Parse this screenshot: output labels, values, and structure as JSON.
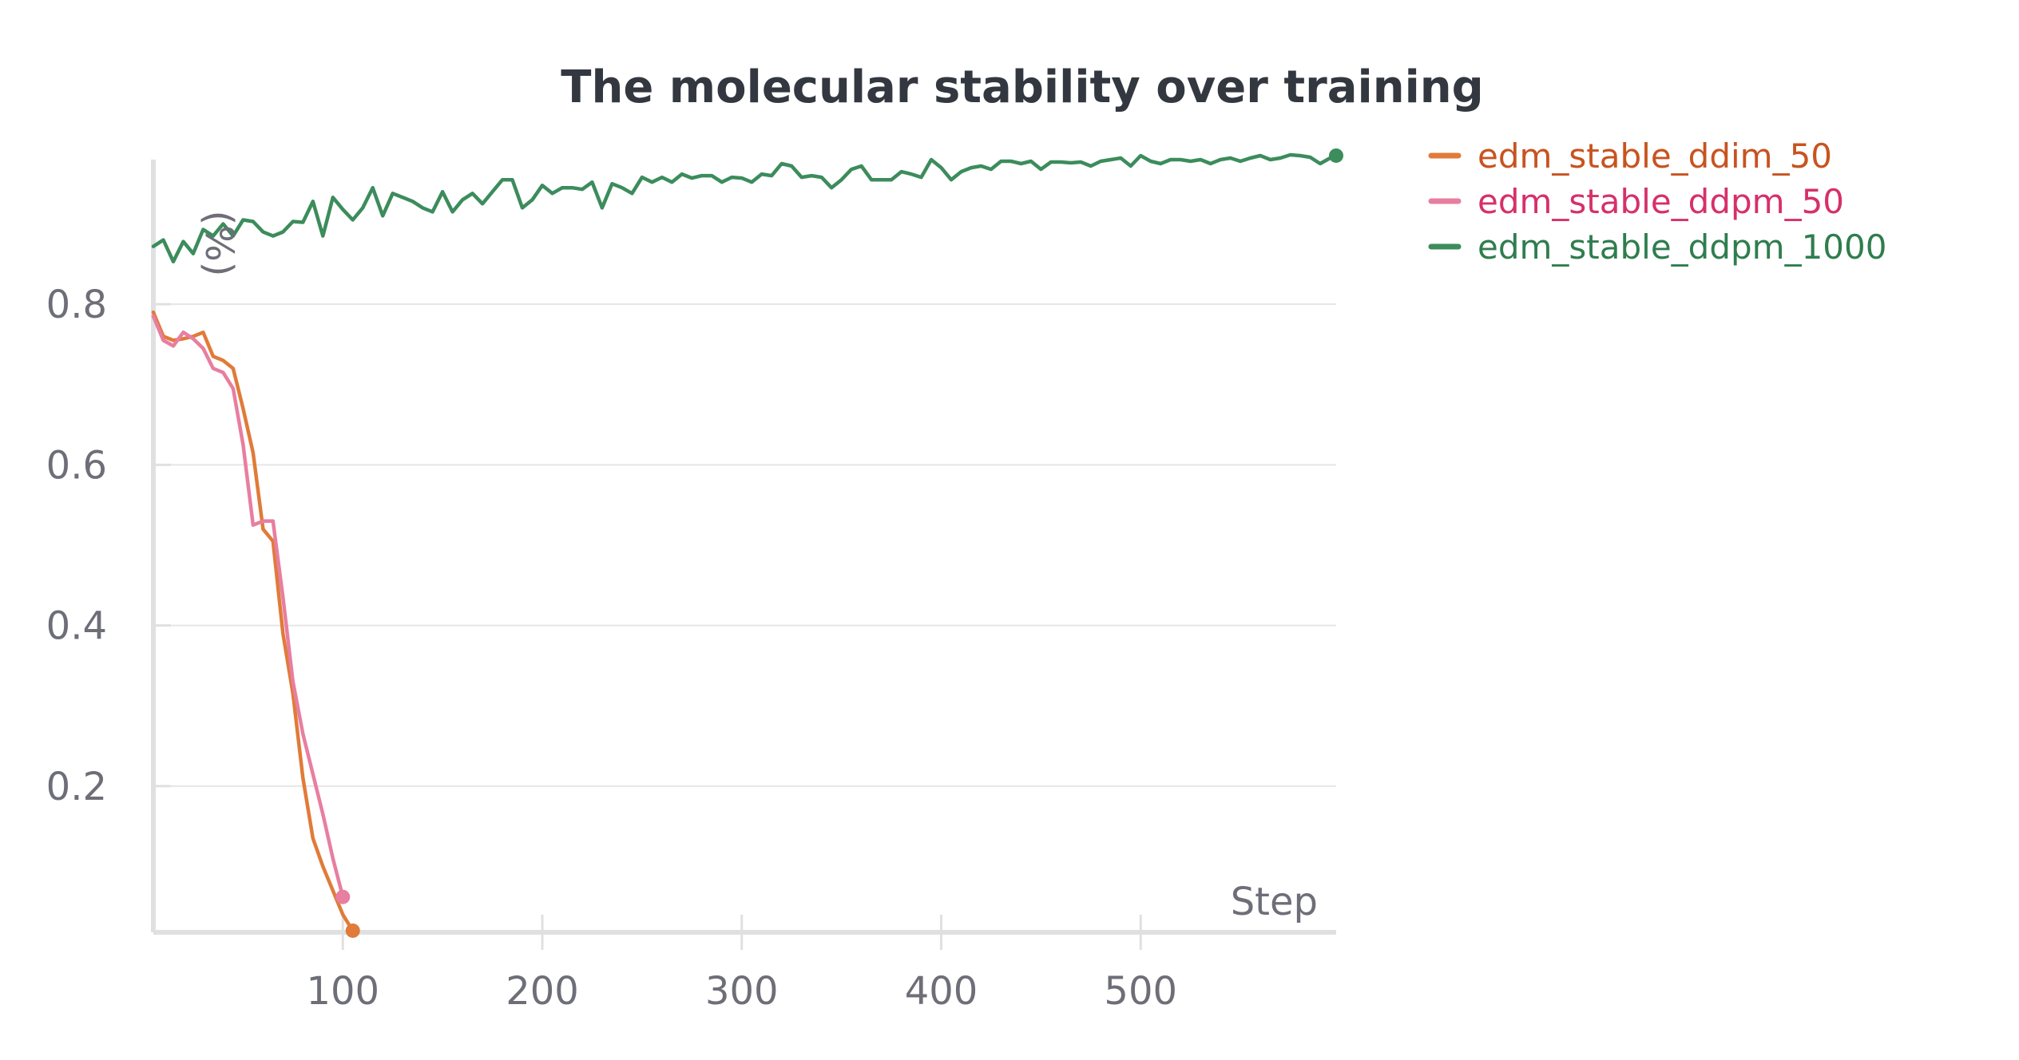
{
  "chart_data": {
    "type": "line",
    "title": "The molecular stability over training",
    "xlabel": "Step",
    "ylabel": "(%)",
    "xlim": [
      5,
      598
    ],
    "ylim": [
      0.018,
      0.98
    ],
    "xticks": [
      100,
      200,
      300,
      400,
      500
    ],
    "yticks": [
      0.2,
      0.4,
      0.6,
      0.8
    ],
    "grid": "horizontal",
    "legend_position": "top-right, outside plot",
    "series": [
      {
        "name": "edm_stable_ddim_50",
        "color": "#e07b39",
        "label_color": "#c8531f",
        "end_marker": true,
        "points": [
          [
            5,
            0.79
          ],
          [
            10,
            0.76
          ],
          [
            15,
            0.755
          ],
          [
            20,
            0.757
          ],
          [
            25,
            0.76
          ],
          [
            30,
            0.765
          ],
          [
            35,
            0.735
          ],
          [
            40,
            0.73
          ],
          [
            45,
            0.72
          ],
          [
            50,
            0.67
          ],
          [
            55,
            0.615
          ],
          [
            60,
            0.52
          ],
          [
            65,
            0.505
          ],
          [
            70,
            0.39
          ],
          [
            75,
            0.315
          ],
          [
            80,
            0.21
          ],
          [
            85,
            0.135
          ],
          [
            90,
            0.1
          ],
          [
            95,
            0.07
          ],
          [
            100,
            0.04
          ],
          [
            105,
            0.02
          ]
        ]
      },
      {
        "name": "edm_stable_ddpm_50",
        "color": "#e87ea0",
        "label_color": "#d6306a",
        "end_marker": true,
        "points": [
          [
            5,
            0.785
          ],
          [
            10,
            0.755
          ],
          [
            15,
            0.748
          ],
          [
            20,
            0.765
          ],
          [
            25,
            0.757
          ],
          [
            30,
            0.745
          ],
          [
            35,
            0.72
          ],
          [
            40,
            0.715
          ],
          [
            45,
            0.695
          ],
          [
            50,
            0.625
          ],
          [
            55,
            0.525
          ],
          [
            60,
            0.53
          ],
          [
            65,
            0.53
          ],
          [
            70,
            0.435
          ],
          [
            75,
            0.33
          ],
          [
            80,
            0.265
          ],
          [
            85,
            0.215
          ],
          [
            90,
            0.165
          ],
          [
            95,
            0.11
          ],
          [
            100,
            0.062
          ]
        ]
      },
      {
        "name": "edm_stable_ddpm_1000",
        "color": "#3c8c5c",
        "label_color": "#2f7d4e",
        "end_marker": true,
        "points": [
          [
            5,
            0.872
          ],
          [
            10,
            0.88
          ],
          [
            15,
            0.853
          ],
          [
            20,
            0.878
          ],
          [
            25,
            0.863
          ],
          [
            30,
            0.893
          ],
          [
            35,
            0.885
          ],
          [
            40,
            0.9
          ],
          [
            45,
            0.885
          ],
          [
            50,
            0.905
          ],
          [
            55,
            0.903
          ],
          [
            60,
            0.89
          ],
          [
            65,
            0.885
          ],
          [
            70,
            0.89
          ],
          [
            75,
            0.903
          ],
          [
            80,
            0.902
          ],
          [
            85,
            0.928
          ],
          [
            90,
            0.885
          ],
          [
            95,
            0.933
          ],
          [
            100,
            0.918
          ],
          [
            105,
            0.905
          ],
          [
            110,
            0.92
          ],
          [
            115,
            0.945
          ],
          [
            120,
            0.91
          ],
          [
            125,
            0.938
          ],
          [
            130,
            0.933
          ],
          [
            135,
            0.928
          ],
          [
            140,
            0.92
          ],
          [
            145,
            0.915
          ],
          [
            150,
            0.94
          ],
          [
            155,
            0.915
          ],
          [
            160,
            0.93
          ],
          [
            165,
            0.938
          ],
          [
            170,
            0.925
          ],
          [
            175,
            0.94
          ],
          [
            180,
            0.955
          ],
          [
            185,
            0.955
          ],
          [
            190,
            0.92
          ],
          [
            195,
            0.93
          ],
          [
            200,
            0.948
          ],
          [
            205,
            0.938
          ],
          [
            210,
            0.945
          ],
          [
            215,
            0.945
          ],
          [
            220,
            0.943
          ],
          [
            225,
            0.952
          ],
          [
            230,
            0.92
          ],
          [
            235,
            0.95
          ],
          [
            240,
            0.945
          ],
          [
            245,
            0.938
          ],
          [
            250,
            0.958
          ],
          [
            255,
            0.952
          ],
          [
            260,
            0.958
          ],
          [
            265,
            0.952
          ],
          [
            270,
            0.962
          ],
          [
            275,
            0.957
          ],
          [
            280,
            0.96
          ],
          [
            285,
            0.96
          ],
          [
            290,
            0.952
          ],
          [
            295,
            0.958
          ],
          [
            300,
            0.957
          ],
          [
            305,
            0.952
          ],
          [
            310,
            0.962
          ],
          [
            315,
            0.96
          ],
          [
            320,
            0.975
          ],
          [
            325,
            0.972
          ],
          [
            330,
            0.958
          ],
          [
            335,
            0.96
          ],
          [
            340,
            0.958
          ],
          [
            345,
            0.945
          ],
          [
            350,
            0.955
          ],
          [
            355,
            0.968
          ],
          [
            360,
            0.972
          ],
          [
            365,
            0.955
          ],
          [
            370,
            0.955
          ],
          [
            375,
            0.955
          ],
          [
            380,
            0.965
          ],
          [
            385,
            0.962
          ],
          [
            390,
            0.958
          ],
          [
            395,
            0.98
          ],
          [
            400,
            0.97
          ],
          [
            405,
            0.955
          ],
          [
            410,
            0.965
          ],
          [
            415,
            0.97
          ],
          [
            420,
            0.972
          ],
          [
            425,
            0.968
          ],
          [
            430,
            0.978
          ],
          [
            435,
            0.978
          ],
          [
            440,
            0.975
          ],
          [
            445,
            0.978
          ],
          [
            450,
            0.968
          ],
          [
            455,
            0.977
          ],
          [
            460,
            0.977
          ],
          [
            465,
            0.976
          ],
          [
            470,
            0.977
          ],
          [
            475,
            0.972
          ],
          [
            480,
            0.978
          ],
          [
            485,
            0.98
          ],
          [
            490,
            0.982
          ],
          [
            495,
            0.972
          ],
          [
            500,
            0.985
          ],
          [
            505,
            0.978
          ],
          [
            510,
            0.975
          ],
          [
            515,
            0.98
          ],
          [
            520,
            0.98
          ],
          [
            525,
            0.978
          ],
          [
            530,
            0.98
          ],
          [
            535,
            0.975
          ],
          [
            540,
            0.98
          ],
          [
            545,
            0.982
          ],
          [
            550,
            0.978
          ],
          [
            555,
            0.982
          ],
          [
            560,
            0.985
          ],
          [
            565,
            0.98
          ],
          [
            570,
            0.982
          ],
          [
            575,
            0.986
          ],
          [
            580,
            0.985
          ],
          [
            585,
            0.983
          ],
          [
            590,
            0.975
          ],
          [
            595,
            0.982
          ],
          [
            598,
            0.985
          ]
        ]
      }
    ]
  }
}
